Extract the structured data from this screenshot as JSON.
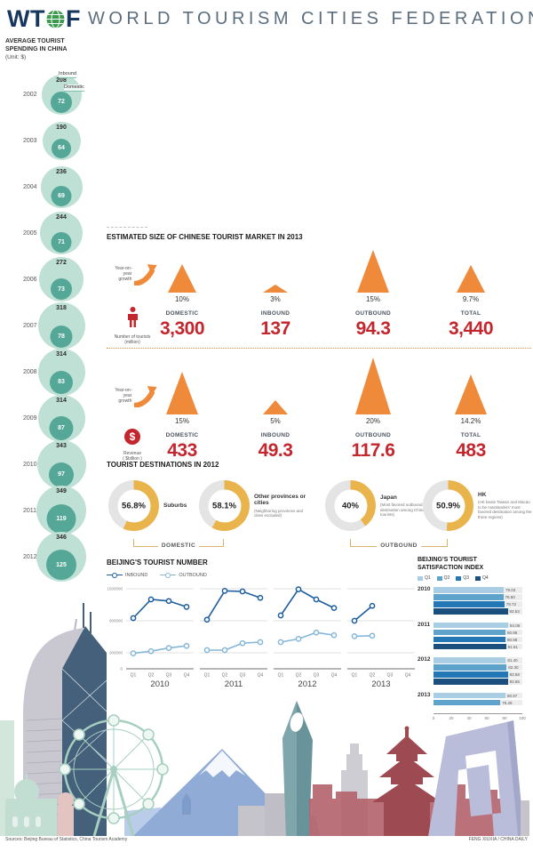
{
  "header": {
    "logo_wt": "WT",
    "logo_f": "F",
    "title": "WORLD TOURISM CITIES FEDERATION"
  },
  "spending": {
    "title_line1": "AVERAGE TOURIST",
    "title_line2": "SPENDING IN CHINA",
    "unit": "(Unit: $)",
    "legend": {
      "outer": "Inbound",
      "inner": "Domestic"
    }
  },
  "market2013": {
    "title": "ESTIMATED SIZE OF CHINESE TOURIST MARKET IN 2013",
    "growth_label_line1": "Year-on-year",
    "growth_label_line2": "growth",
    "rows": [
      {
        "metric_icon": "tourists-icon",
        "metric_label_line1": "Number of tourists",
        "metric_label_line2": "(million)",
        "items": [
          {
            "category": "DOMESTIC",
            "growth": "10%",
            "growth_pct": 10,
            "value": "3,300"
          },
          {
            "category": "INBOUND",
            "growth": "3%",
            "growth_pct": 3,
            "value": "137"
          },
          {
            "category": "OUTBOUND",
            "growth": "15%",
            "growth_pct": 15,
            "value": "94.3"
          },
          {
            "category": "TOTAL",
            "growth": "9.7%",
            "growth_pct": 9.7,
            "value": "3,440"
          }
        ]
      },
      {
        "metric_icon": "revenue-icon",
        "metric_label_line1": "Revenue",
        "metric_label_line2": "( $billion )",
        "items": [
          {
            "category": "DOMESTIC",
            "growth": "15%",
            "growth_pct": 15,
            "value": "433"
          },
          {
            "category": "INBOUND",
            "growth": "5%",
            "growth_pct": 5,
            "value": "49.3"
          },
          {
            "category": "OUTBOUND",
            "growth": "20%",
            "growth_pct": 20,
            "value": "117.6"
          },
          {
            "category": "TOTAL",
            "growth": "14.2%",
            "growth_pct": 14.2,
            "value": "483"
          }
        ]
      }
    ]
  },
  "destinations": {
    "title": "TOURIST DESTINATIONS IN 2012",
    "groups": [
      "DOMESTIC",
      "OUTBOUND"
    ]
  },
  "satisfaction": {
    "title_line1": "BEIJING'S TOURIST",
    "title_line2": "SATISFACTION INDEX"
  },
  "footer": {
    "sources": "Sources: Beijing Bureau of Statistics, China Tourism Academy",
    "credit": "FENG XIUXIA / CHINA DAILY"
  },
  "colors": {
    "accent_orange": "#EF8A3B",
    "accent_red": "#C4262E",
    "teal_light": "#BFE0D5",
    "teal_dark": "#55A898",
    "donut_gold": "#E9B44C",
    "donut_rest": "#E4E4E4",
    "inbound_blue": "#1D5E9E",
    "outbound_blue": "#85B8D8",
    "bar_q1": "#A9CDE3",
    "bar_q2": "#5EA3CC",
    "bar_q3": "#2277B4",
    "bar_q4": "#1B4F7E"
  },
  "chart_data": [
    {
      "type": "bubble",
      "title": "AVERAGE TOURIST SPENDING IN CHINA (Unit: $)",
      "categories": [
        "2002",
        "2003",
        "2004",
        "2005",
        "2006",
        "2007",
        "2008",
        "2009",
        "2010",
        "2011",
        "2012"
      ],
      "series": [
        {
          "name": "Inbound",
          "values": [
            208,
            190,
            236,
            244,
            272,
            318,
            314,
            314,
            343,
            349,
            346
          ]
        },
        {
          "name": "Domestic",
          "values": [
            72,
            64,
            69,
            71,
            73,
            78,
            83,
            87,
            97,
            119,
            125
          ]
        }
      ]
    },
    {
      "type": "pie",
      "title": "TOURIST DESTINATIONS IN 2012",
      "items": [
        {
          "pct": 56.8,
          "pct_label": "56.8%",
          "label": "Suburbs",
          "note": "",
          "group": "DOMESTIC"
        },
        {
          "pct": 58.1,
          "pct_label": "58.1%",
          "label": "Other provinces or cities",
          "note": "(Neighboring provinces and cities excluded)",
          "group": "DOMESTIC"
        },
        {
          "pct": 40,
          "pct_label": "40%",
          "label": "Japan",
          "note": "(Most favored outbound destination among Chinese tourists)",
          "group": "OUTBOUND"
        },
        {
          "pct": 50.9,
          "pct_label": "50.9%",
          "label": "HK",
          "note": "(HK beats Taiwan and Macao to be mainlanders' most favored destination among the three regions)",
          "group": "OUTBOUND"
        }
      ]
    },
    {
      "type": "line",
      "title": "BEIJING'S TOURIST NUMBER",
      "legend": [
        "INBOUND",
        "OUTBOUND"
      ],
      "x": [
        "Q1",
        "Q2",
        "Q3",
        "Q4"
      ],
      "ylim": [
        0,
        1500000
      ],
      "yticks": [
        1500000,
        900000,
        300000,
        0
      ],
      "panels": [
        {
          "year": "2010",
          "INBOUND": [
            950000,
            1300000,
            1270000,
            1160000
          ],
          "OUTBOUND": [
            290000,
            330000,
            390000,
            430000
          ]
        },
        {
          "year": "2011",
          "INBOUND": [
            920000,
            1460000,
            1450000,
            1330000
          ],
          "OUTBOUND": [
            350000,
            350000,
            480000,
            500000
          ]
        },
        {
          "year": "2012",
          "INBOUND": [
            1000000,
            1490000,
            1300000,
            1140000
          ],
          "OUTBOUND": [
            500000,
            560000,
            680000,
            630000
          ]
        },
        {
          "year": "2013",
          "INBOUND": [
            900000,
            1180000,
            null,
            null
          ],
          "OUTBOUND": [
            610000,
            620000,
            null,
            null
          ]
        }
      ]
    },
    {
      "type": "bar",
      "title": "BEIJING'S TOURIST SATISFACTION INDEX",
      "legend": [
        "Q1",
        "Q2",
        "Q3",
        "Q4"
      ],
      "xlim": [
        0,
        100
      ],
      "xticks": [
        0,
        20,
        40,
        60,
        80,
        100
      ],
      "groups": [
        {
          "year": "2010",
          "values": [
            "79.03",
            "78.50",
            "79.72",
            "83.53"
          ]
        },
        {
          "year": "2011",
          "values": [
            "84.06",
            "80.95",
            "80.98",
            "81.61"
          ]
        },
        {
          "year": "2012",
          "values": [
            "81.40",
            "82.30",
            "83.58",
            "83.65"
          ]
        },
        {
          "year": "2013",
          "values": [
            "80.97",
            "75.28"
          ]
        }
      ]
    }
  ]
}
